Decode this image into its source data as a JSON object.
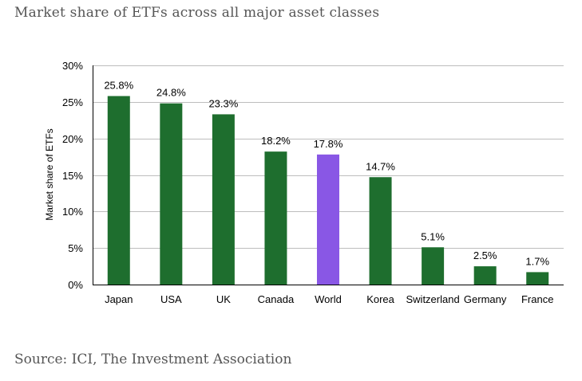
{
  "title": "Market share of ETFs across all major asset classes",
  "source": "Source: ICI, The Investment Association",
  "chart_data": {
    "type": "bar",
    "title": "",
    "xlabel": "",
    "ylabel": "Market share of ETFs",
    "categories": [
      "Japan",
      "USA",
      "UK",
      "Canada",
      "World",
      "Korea",
      "Switzerland",
      "Germany",
      "France"
    ],
    "values": [
      25.8,
      24.8,
      23.3,
      18.2,
      17.8,
      14.7,
      5.1,
      2.5,
      1.7
    ],
    "data_labels": [
      "25.8%",
      "24.8%",
      "23.3%",
      "18.2%",
      "17.8%",
      "14.7%",
      "5.1%",
      "2.5%",
      "1.7%"
    ],
    "ylim": [
      0,
      30
    ],
    "yticks": [
      0,
      5,
      10,
      15,
      20,
      25,
      30
    ],
    "ytick_labels": [
      "0%",
      "5%",
      "10%",
      "15%",
      "20%",
      "25%",
      "30%"
    ],
    "grid": true,
    "legend": "none",
    "colors": {
      "default": "#1e6e2e",
      "highlight": "#8957e5",
      "highlight_category": "World",
      "grid": "#bdbdbd"
    }
  }
}
